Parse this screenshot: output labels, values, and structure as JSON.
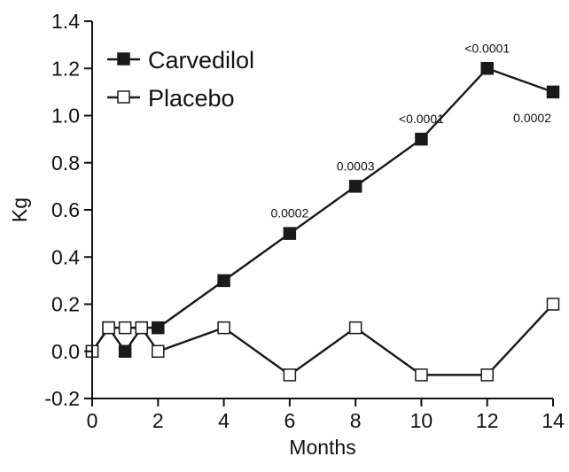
{
  "chart_data": {
    "type": "line",
    "xlabel": "Months",
    "ylabel": "Kg",
    "xlim": [
      0,
      14
    ],
    "ylim": [
      -0.2,
      1.4
    ],
    "xticks": [
      0,
      2,
      4,
      6,
      8,
      10,
      12,
      14
    ],
    "yticks": [
      -0.2,
      0.0,
      0.2,
      0.4,
      0.6,
      0.8,
      1.0,
      1.2,
      1.4
    ],
    "ytick_labels": [
      "-0.2",
      "0.0",
      "0.2",
      "0.4",
      "0.6",
      "0.8",
      "1.0",
      "1.2",
      "1.4"
    ],
    "grid": false,
    "legend_position": "top-left",
    "series": [
      {
        "name": "Carvedilol",
        "marker": "filled-square",
        "color": "#1a1a1a",
        "x": [
          0,
          0.5,
          1,
          1.5,
          2,
          4,
          6,
          8,
          10,
          12,
          14
        ],
        "y": [
          0.0,
          0.1,
          0.0,
          0.1,
          0.1,
          0.3,
          0.5,
          0.7,
          0.9,
          1.2,
          1.1
        ]
      },
      {
        "name": "Placebo",
        "marker": "open-square",
        "color": "#1a1a1a",
        "x": [
          0,
          0.5,
          1,
          1.5,
          2,
          4,
          6,
          8,
          10,
          12,
          14
        ],
        "y": [
          0.0,
          0.1,
          0.1,
          0.1,
          0.0,
          0.1,
          -0.1,
          0.1,
          -0.1,
          -0.1,
          0.2
        ]
      }
    ],
    "annotations": [
      {
        "x": 6,
        "y": 0.5,
        "text": "0.0002",
        "position": "above"
      },
      {
        "x": 8,
        "y": 0.7,
        "text": "0.0003",
        "position": "above"
      },
      {
        "x": 10,
        "y": 0.9,
        "text": "<0.0001",
        "position": "above"
      },
      {
        "x": 12,
        "y": 1.2,
        "text": "<0.0001",
        "position": "above"
      },
      {
        "x": 14,
        "y": 1.1,
        "text": "0.0002",
        "position": "below"
      }
    ]
  }
}
